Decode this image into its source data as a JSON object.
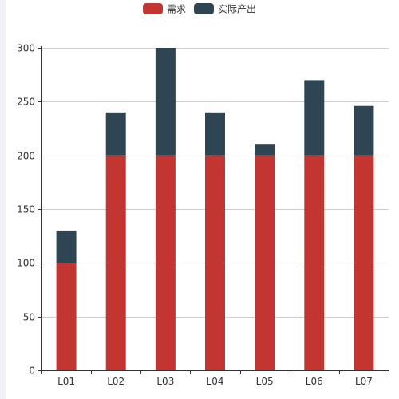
{
  "chart_data": {
    "type": "bar",
    "stacked": true,
    "categories": [
      "L01",
      "L02",
      "L03",
      "L04",
      "L05",
      "L06",
      "L07"
    ],
    "series": [
      {
        "name": "需求",
        "color": "#c23531",
        "values": [
          100,
          200,
          200,
          200,
          200,
          200,
          200
        ]
      },
      {
        "name": "实际产出",
        "color": "#2f4554",
        "values": [
          30,
          40,
          100,
          40,
          10,
          70,
          46
        ]
      }
    ],
    "ylim": [
      0,
      300
    ],
    "yticks": [
      0,
      50,
      100,
      150,
      200,
      250,
      300
    ],
    "grid": true,
    "legend_position": "top-center"
  }
}
